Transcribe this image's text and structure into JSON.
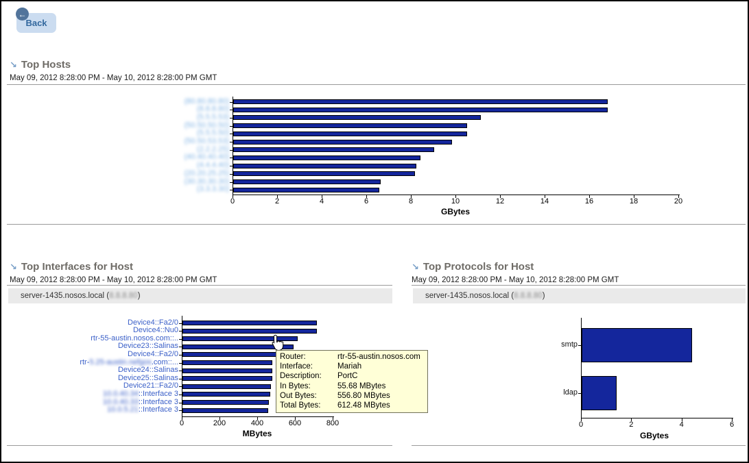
{
  "back_button": {
    "label": "Back",
    "icon": "arrow-left"
  },
  "sections": {
    "top_hosts": {
      "title": "Top Hosts",
      "date_range": "May 09, 2012 8:28:00 PM - May 10, 2012 8:28:00 PM GMT"
    },
    "top_interfaces": {
      "title": "Top Interfaces for Host",
      "date_range": "May 09, 2012 8:28:00 PM - May 10, 2012 8:28:00 PM GMT",
      "host_selector": {
        "pre": "server-1435.nosos.local (",
        "redacted_ip": "8.8.8.80",
        "post": ")"
      }
    },
    "top_protocols": {
      "title": "Top Protocols for Host",
      "date_range": "May 09, 2012 8:28:00 PM - May 10, 2012 8:28:00 PM GMT",
      "host_selector": {
        "pre": "server-1435.nosos.local (",
        "redacted_ip": "8.8.8.80",
        "post": ")"
      }
    }
  },
  "tooltip": {
    "rows": [
      {
        "label": "Router:",
        "value": "rtr-55-austin.nosos.com"
      },
      {
        "label": "Interface:",
        "value": "Mariah"
      },
      {
        "label": "Description:",
        "value": "PortC"
      },
      {
        "label": "In Bytes:",
        "value": "55.68 MBytes"
      },
      {
        "label": "Out Bytes:",
        "value": "556.80 MBytes"
      },
      {
        "label": "Total Bytes:",
        "value": "612.48 MBytes"
      }
    ]
  },
  "colors": {
    "bar_fill": "#14269c",
    "bar_border": "#000000",
    "heading": "#6e6b66",
    "section_arrow": "#7aa0c8",
    "category_link_blue": "#3a5fc8",
    "redacted_blue": "#7fb2e4",
    "tooltip_bg": "#ffffd7",
    "host_strip_bg": "#eaeaea",
    "back_button_bg": "#cbdcf0",
    "back_badge_bg": "#52749b"
  },
  "chart_data": [
    {
      "id": "top_hosts",
      "type": "bar",
      "orientation": "horizontal",
      "title": "Top Hosts",
      "xlabel": "GBytes",
      "xlim": [
        0,
        20
      ],
      "xticks": [
        0,
        2,
        4,
        6,
        8,
        10,
        12,
        14,
        16,
        18,
        20
      ],
      "categories_redacted": true,
      "label_parts": [
        [
          {
            "text": "(80.80.80.80)",
            "redacted": true
          }
        ],
        [
          {
            "text": "(8.8.8.80)",
            "redacted": true
          }
        ],
        [
          {
            "text": "(5.5.5.53)",
            "redacted": true
          }
        ],
        [
          {
            "text": "(50.50.50.50)",
            "redacted": true
          }
        ],
        [
          {
            "text": "(5.5.5.50)",
            "redacted": true
          }
        ],
        [
          {
            "text": "(50.50.53.53)",
            "redacted": true
          }
        ],
        [
          {
            "text": "(2.2.2.25)",
            "redacted": true
          }
        ],
        [
          {
            "text": "(40.40.40.40)",
            "redacted": true
          }
        ],
        [
          {
            "text": "(4.4.4.40)",
            "redacted": true
          }
        ],
        [
          {
            "text": "(20.20.25.25)",
            "redacted": true
          }
        ],
        [
          {
            "text": "(30.30.30.30)",
            "redacted": true
          }
        ],
        [
          {
            "text": "(3.3.3.30)",
            "redacted": true
          }
        ]
      ],
      "values": [
        16.8,
        16.8,
        11.1,
        10.5,
        10.5,
        9.8,
        9.0,
        8.4,
        8.2,
        8.15,
        6.6,
        6.55
      ]
    },
    {
      "id": "top_interfaces",
      "type": "bar",
      "orientation": "horizontal",
      "title": "Top Interfaces for Host",
      "xlabel": "MBytes",
      "xlim": [
        0,
        800
      ],
      "xticks": [
        0,
        200,
        400,
        600,
        800
      ],
      "label_parts": [
        [
          {
            "text": "Device4::Fa2/0"
          }
        ],
        [
          {
            "text": "Device4::Nu0"
          }
        ],
        [
          {
            "text": "rtr-55-austin.nosos.com::.."
          }
        ],
        [
          {
            "text": "Device23::Salinas"
          }
        ],
        [
          {
            "text": "Device4::Fa2/0"
          }
        ],
        [
          {
            "text": "rtr-"
          },
          {
            "text": "5.25-austin.nefgos",
            "redacted": true
          },
          {
            "text": ".com::..."
          }
        ],
        [
          {
            "text": "Device24::Salinas"
          }
        ],
        [
          {
            "text": "Device25::Salinas"
          }
        ],
        [
          {
            "text": "Device21::Fa2/0"
          }
        ],
        [
          {
            "text": "10.0.40.34",
            "redacted": true
          },
          {
            "text": "::Interface 3"
          }
        ],
        [
          {
            "text": "10.0.40.33",
            "redacted": true
          },
          {
            "text": "::Interface 3"
          }
        ],
        [
          {
            "text": "10.0.5.21",
            "redacted": true
          },
          {
            "text": "::Interface 3"
          }
        ]
      ],
      "values": [
        714,
        711,
        612,
        590,
        578,
        477,
        477,
        477,
        470,
        467,
        459,
        455
      ],
      "hovered_bar_index": 2
    },
    {
      "id": "top_protocols",
      "type": "bar",
      "orientation": "horizontal",
      "title": "Top Protocols for Host",
      "xlabel": "GBytes",
      "xlim": [
        0,
        6
      ],
      "xticks": [
        0,
        2,
        4,
        6
      ],
      "label_parts": [
        [
          {
            "text": "smtp"
          }
        ],
        [
          {
            "text": "ldap"
          }
        ]
      ],
      "values": [
        4.4,
        1.4
      ]
    }
  ]
}
